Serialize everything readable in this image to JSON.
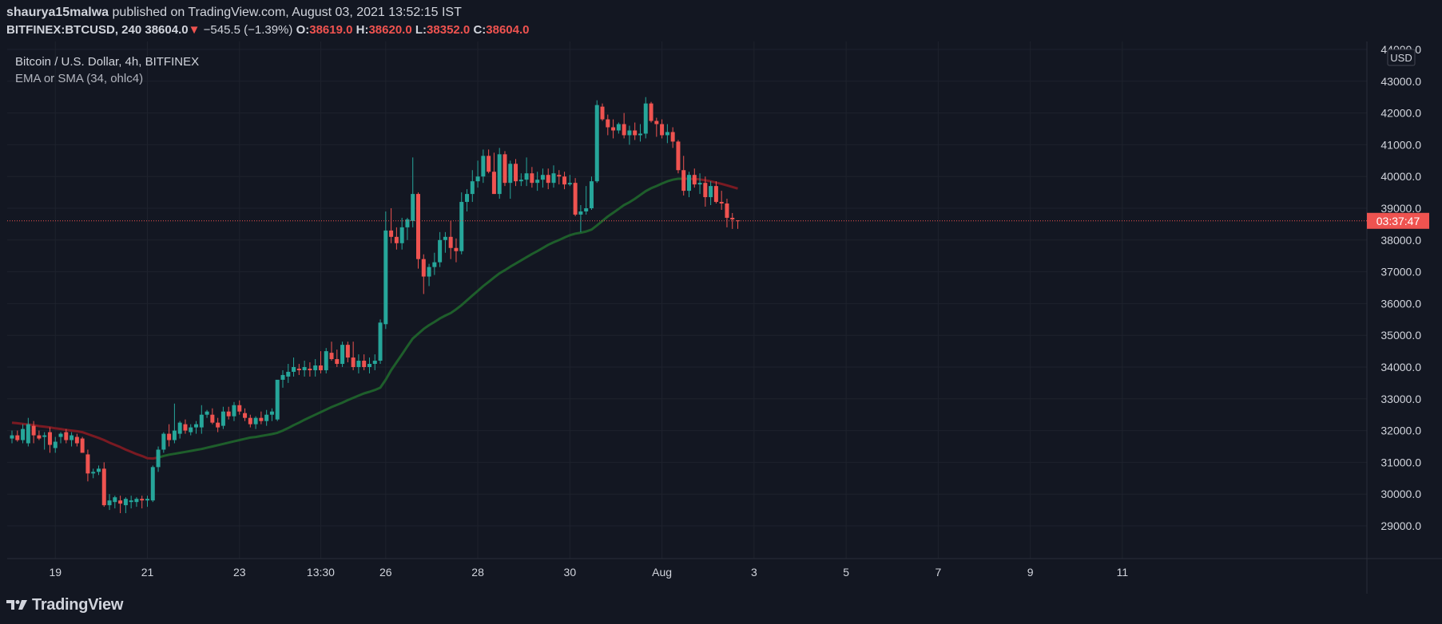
{
  "header": {
    "author": "shaurya15malwa",
    "published_text": "published on TradingView.com, August 03, 2021 13:52:15 IST",
    "symbol": "BITFINEX:BTCUSD, 240",
    "last": "38604.0",
    "change": "−545.5 (−1.39%)",
    "o_label": "O:",
    "o_value": "38619.0",
    "h_label": "H:",
    "h_value": "38620.0",
    "l_label": "L:",
    "l_value": "38352.0",
    "c_label": "C:",
    "c_value": "38604.0"
  },
  "legend": {
    "title": "Bitcoin / U.S. Dollar, 4h, BITFINEX",
    "indicator": "EMA or SMA (34, ohlc4)"
  },
  "axis": {
    "currency": "USD",
    "last_price_label": "03:37:47"
  },
  "footer": {
    "brand": "TradingView"
  },
  "colors": {
    "background": "#131722",
    "up": "#26a69a",
    "down": "#ef5350",
    "ema_up": "#1e5e2b",
    "ema_down": "#7a1a22",
    "grid": "#1e222d",
    "text": "#d1d4dc"
  },
  "chart_data": {
    "type": "candlestick",
    "title": "Bitcoin / U.S. Dollar, 4h, BITFINEX",
    "xlabel": "",
    "ylabel": "",
    "ylim": [
      28000,
      44000
    ],
    "grid": true,
    "y_ticks": [
      29000,
      30000,
      31000,
      32000,
      33000,
      34000,
      35000,
      36000,
      37000,
      38000,
      39000,
      40000,
      41000,
      42000,
      43000,
      44000
    ],
    "x_ticks": [
      {
        "label": "19",
        "bar": 8
      },
      {
        "label": "21",
        "bar": 25
      },
      {
        "label": "23",
        "bar": 42
      },
      {
        "label": "13:30",
        "bar": 57
      },
      {
        "label": "26",
        "bar": 69
      },
      {
        "label": "28",
        "bar": 86
      },
      {
        "label": "30",
        "bar": 103
      },
      {
        "label": "Aug",
        "bar": 120
      },
      {
        "label": "3",
        "bar": 137
      },
      {
        "label": "5",
        "bar": 154
      },
      {
        "label": "7",
        "bar": 171
      },
      {
        "label": "9",
        "bar": 188
      },
      {
        "label": "11",
        "bar": 205
      }
    ],
    "last_price": 38604.0,
    "series": [
      {
        "name": "BITFINEX:BTCUSD",
        "fields": [
          "open",
          "high",
          "low",
          "close"
        ],
        "candles": [
          [
            31750,
            32000,
            31600,
            31850
          ],
          [
            31850,
            32000,
            31650,
            31700
          ],
          [
            31700,
            32200,
            31600,
            32050
          ],
          [
            31600,
            32400,
            31500,
            32200
          ],
          [
            32150,
            32300,
            31600,
            31850
          ],
          [
            31850,
            32000,
            31700,
            31750
          ],
          [
            31800,
            31950,
            31400,
            31850
          ],
          [
            31950,
            32100,
            31300,
            31550
          ],
          [
            31450,
            31800,
            31300,
            31650
          ],
          [
            31800,
            31950,
            31600,
            31900
          ],
          [
            31950,
            32050,
            31600,
            31700
          ],
          [
            31700,
            31950,
            31500,
            31850
          ],
          [
            31800,
            31900,
            31500,
            31600
          ],
          [
            31750,
            31800,
            31300,
            31300
          ],
          [
            31250,
            31400,
            30400,
            30650
          ],
          [
            30650,
            30800,
            30500,
            30700
          ],
          [
            30700,
            30900,
            30600,
            30800
          ],
          [
            30800,
            31000,
            29600,
            29650
          ],
          [
            29650,
            30000,
            29500,
            29800
          ],
          [
            29750,
            29950,
            29550,
            29900
          ],
          [
            29800,
            29950,
            29400,
            29700
          ],
          [
            29650,
            29900,
            29400,
            29850
          ],
          [
            29750,
            29950,
            29550,
            29800
          ],
          [
            29750,
            29900,
            29600,
            29850
          ],
          [
            29850,
            29950,
            29550,
            29800
          ],
          [
            29800,
            29950,
            29600,
            29850
          ],
          [
            29800,
            30900,
            29750,
            30850
          ],
          [
            30850,
            31500,
            30700,
            31400
          ],
          [
            31400,
            31950,
            31300,
            31900
          ],
          [
            31900,
            32200,
            31500,
            31700
          ],
          [
            31700,
            32850,
            31600,
            32000
          ],
          [
            31900,
            32300,
            31750,
            32250
          ],
          [
            32200,
            32350,
            31900,
            32000
          ],
          [
            31950,
            32200,
            31850,
            32100
          ],
          [
            32100,
            32300,
            31900,
            32200
          ],
          [
            32100,
            32800,
            31900,
            32500
          ],
          [
            32500,
            32650,
            32400,
            32600
          ],
          [
            32500,
            32700,
            32200,
            32250
          ],
          [
            32250,
            32400,
            31950,
            32100
          ],
          [
            32150,
            32750,
            32050,
            32600
          ],
          [
            32600,
            32750,
            32350,
            32450
          ],
          [
            32450,
            32900,
            32300,
            32800
          ],
          [
            32800,
            32950,
            32500,
            32600
          ],
          [
            32550,
            32700,
            32300,
            32400
          ],
          [
            32400,
            32500,
            32100,
            32200
          ],
          [
            32200,
            32450,
            32050,
            32400
          ],
          [
            32400,
            32600,
            32200,
            32300
          ],
          [
            32300,
            32650,
            32150,
            32500
          ],
          [
            32500,
            32700,
            32300,
            32600
          ],
          [
            32350,
            33500,
            32300,
            33600
          ],
          [
            33600,
            33900,
            33350,
            33750
          ],
          [
            33700,
            34100,
            33500,
            33850
          ],
          [
            33850,
            34300,
            33700,
            34000
          ],
          [
            33950,
            34100,
            33750,
            33900
          ],
          [
            33900,
            34200,
            33700,
            34000
          ],
          [
            33950,
            34150,
            33700,
            33900
          ],
          [
            33900,
            34250,
            33700,
            34050
          ],
          [
            34050,
            34500,
            33800,
            33900
          ],
          [
            33900,
            34600,
            33800,
            34500
          ],
          [
            34450,
            34800,
            34200,
            34250
          ],
          [
            34250,
            34550,
            34000,
            34100
          ],
          [
            34100,
            34800,
            34000,
            34700
          ],
          [
            34700,
            34800,
            34150,
            34300
          ],
          [
            34300,
            34800,
            33900,
            34000
          ],
          [
            34000,
            34400,
            33800,
            34200
          ],
          [
            34200,
            34400,
            33900,
            34000
          ],
          [
            34000,
            34300,
            33800,
            34100
          ],
          [
            34100,
            34400,
            33900,
            34200
          ],
          [
            34200,
            35500,
            34100,
            35400
          ],
          [
            35350,
            38900,
            35200,
            38300
          ],
          [
            38300,
            39000,
            37900,
            38100
          ],
          [
            38100,
            38400,
            37700,
            37900
          ],
          [
            37900,
            38700,
            37700,
            38400
          ],
          [
            38400,
            38700,
            38000,
            38650
          ],
          [
            38600,
            40600,
            38400,
            39450
          ],
          [
            39450,
            39500,
            37100,
            37400
          ],
          [
            37400,
            37550,
            36300,
            36850
          ],
          [
            36850,
            37250,
            36550,
            37150
          ],
          [
            37150,
            37600,
            36900,
            37300
          ],
          [
            37300,
            38250,
            37150,
            38000
          ],
          [
            38000,
            38250,
            37600,
            38100
          ],
          [
            38100,
            38600,
            37400,
            37750
          ],
          [
            37750,
            38050,
            37300,
            37650
          ],
          [
            37650,
            39500,
            37550,
            39200
          ],
          [
            39200,
            39600,
            38900,
            39450
          ],
          [
            39450,
            40200,
            39200,
            39850
          ],
          [
            39850,
            40500,
            39650,
            40000
          ],
          [
            40000,
            40850,
            39800,
            40650
          ],
          [
            40650,
            40850,
            40100,
            40150
          ],
          [
            40150,
            40750,
            39450,
            39450
          ],
          [
            39450,
            40900,
            39300,
            40700
          ],
          [
            40700,
            40800,
            39700,
            39800
          ],
          [
            39800,
            40500,
            39300,
            40400
          ],
          [
            40400,
            40550,
            39700,
            39850
          ],
          [
            39850,
            40100,
            39700,
            39900
          ],
          [
            39900,
            40600,
            39700,
            40100
          ],
          [
            40100,
            40300,
            39650,
            39800
          ],
          [
            39800,
            40150,
            39550,
            39900
          ],
          [
            39900,
            40250,
            39650,
            40050
          ],
          [
            40050,
            40250,
            39600,
            39800
          ],
          [
            39800,
            40350,
            39650,
            40100
          ],
          [
            40050,
            40200,
            39750,
            40000
          ],
          [
            40000,
            40150,
            39600,
            39750
          ],
          [
            39750,
            40050,
            39700,
            39800
          ],
          [
            39800,
            39950,
            38750,
            38800
          ],
          [
            38800,
            39100,
            38250,
            38900
          ],
          [
            38900,
            39700,
            38800,
            39000
          ],
          [
            39000,
            40000,
            38950,
            39850
          ],
          [
            39850,
            42400,
            39800,
            42250
          ],
          [
            42200,
            42300,
            41750,
            41800
          ],
          [
            41800,
            41950,
            41300,
            41550
          ],
          [
            41550,
            41800,
            41200,
            41450
          ],
          [
            41450,
            41700,
            41350,
            41650
          ],
          [
            41650,
            42000,
            41200,
            41300
          ],
          [
            41300,
            41600,
            41000,
            41450
          ],
          [
            41450,
            41700,
            41150,
            41300
          ],
          [
            41300,
            41650,
            41100,
            41350
          ],
          [
            41350,
            42500,
            41200,
            42300
          ],
          [
            42300,
            42350,
            41700,
            41750
          ],
          [
            41750,
            41850,
            41250,
            41650
          ],
          [
            41650,
            41800,
            41200,
            41300
          ],
          [
            41300,
            41650,
            41050,
            41400
          ],
          [
            41400,
            41550,
            40900,
            41100
          ],
          [
            41100,
            41150,
            40100,
            40200
          ],
          [
            40200,
            40650,
            39400,
            39550
          ],
          [
            39550,
            40150,
            39350,
            40050
          ],
          [
            40050,
            40250,
            39650,
            39750
          ],
          [
            39750,
            40100,
            39450,
            39800
          ],
          [
            39800,
            40000,
            39050,
            39350
          ],
          [
            39350,
            39850,
            39100,
            39700
          ],
          [
            39700,
            39850,
            39150,
            39200
          ],
          [
            39200,
            39550,
            38950,
            39150
          ],
          [
            39150,
            39300,
            38400,
            38700
          ],
          [
            38700,
            38850,
            38350,
            38650
          ],
          [
            38619,
            38620,
            38352,
            38604
          ]
        ]
      },
      {
        "name": "EMA or SMA (34, ohlc4)",
        "type": "line",
        "values": [
          32250,
          32230,
          32210,
          32190,
          32170,
          32140,
          32120,
          32100,
          32070,
          32050,
          32020,
          32000,
          31980,
          31950,
          31890,
          31830,
          31770,
          31700,
          31620,
          31550,
          31480,
          31400,
          31330,
          31260,
          31200,
          31130,
          31120,
          31150,
          31200,
          31240,
          31270,
          31300,
          31330,
          31360,
          31390,
          31420,
          31460,
          31500,
          31540,
          31580,
          31620,
          31660,
          31700,
          31740,
          31780,
          31800,
          31830,
          31860,
          31890,
          31930,
          32000,
          32080,
          32170,
          32250,
          32340,
          32420,
          32500,
          32580,
          32660,
          32740,
          32810,
          32880,
          32960,
          33030,
          33100,
          33170,
          33220,
          33280,
          33350,
          33600,
          33900,
          34150,
          34400,
          34650,
          34900,
          35050,
          35200,
          35320,
          35420,
          35530,
          35620,
          35700,
          35820,
          35950,
          36100,
          36250,
          36400,
          36550,
          36680,
          36820,
          36950,
          37050,
          37160,
          37260,
          37360,
          37460,
          37560,
          37650,
          37750,
          37850,
          37930,
          38000,
          38080,
          38150,
          38200,
          38230,
          38270,
          38330,
          38460,
          38600,
          38740,
          38860,
          38980,
          39100,
          39190,
          39300,
          39420,
          39540,
          39630,
          39700,
          39780,
          39850,
          39900,
          39930,
          39930,
          39930,
          39920,
          39910,
          39880,
          39850,
          39810,
          39770,
          39720,
          39670,
          39620
        ]
      }
    ]
  }
}
